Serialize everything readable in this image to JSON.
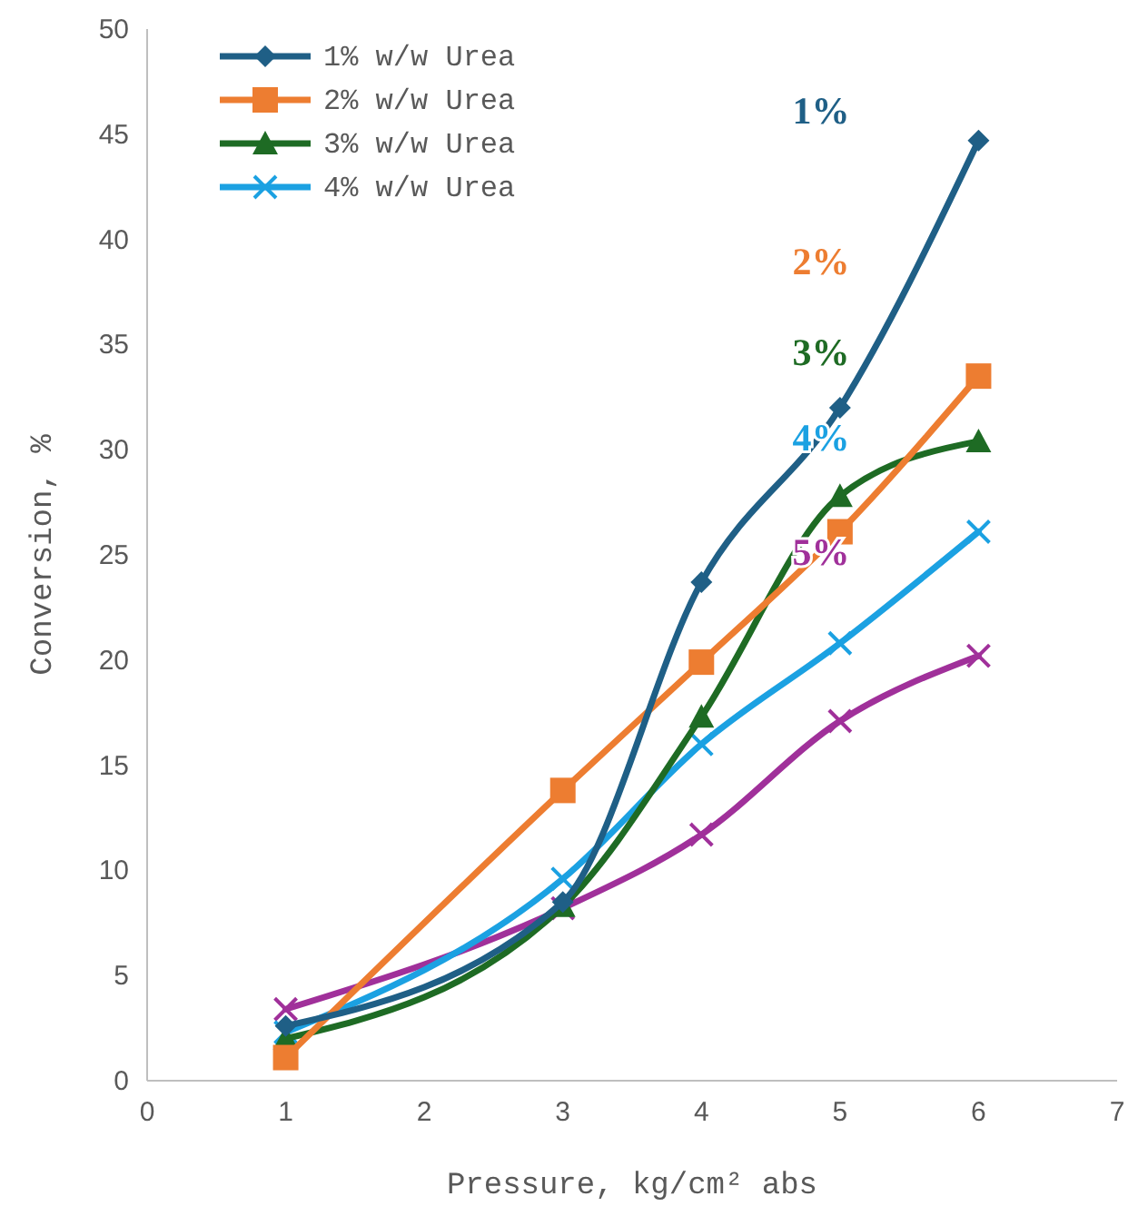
{
  "chart_data": {
    "type": "line",
    "xlabel": "Pressure, kg/cm² abs",
    "ylabel": "Conversion, %",
    "xlim": [
      0,
      7
    ],
    "xticks": [
      0,
      1,
      2,
      3,
      4,
      5,
      6,
      7
    ],
    "ylim": [
      0,
      50
    ],
    "yticks": [
      0,
      5,
      10,
      15,
      20,
      25,
      30,
      35,
      40,
      45,
      50
    ],
    "grid": false,
    "legend": "top left",
    "x": [
      1,
      3,
      4,
      5,
      6
    ],
    "series": [
      {
        "name": "1% w/w Urea",
        "color": "#1f5f86",
        "marker": "diamond",
        "values": [
          2.6,
          8.5,
          23.7,
          32.0,
          44.7
        ]
      },
      {
        "name": "2% w/w Urea",
        "color": "#ed7d31",
        "marker": "square",
        "values": [
          1.1,
          13.8,
          19.9,
          26.1,
          33.5
        ]
      },
      {
        "name": "3% w/w Urea",
        "color": "#1e6b24",
        "marker": "triangle",
        "values": [
          2.0,
          8.3,
          17.3,
          27.8,
          30.4
        ]
      },
      {
        "name": "4% w/w Urea",
        "color": "#1ba1e2",
        "marker": "cross",
        "values": [
          2.3,
          9.6,
          16.0,
          20.8,
          26.1
        ]
      },
      {
        "color": "#a0309a",
        "marker": "cross",
        "values": [
          3.4,
          8.2,
          11.7,
          17.1,
          20.2
        ]
      }
    ],
    "annotations": [
      "1%",
      "2%",
      "3%",
      "4%",
      "5%"
    ]
  }
}
